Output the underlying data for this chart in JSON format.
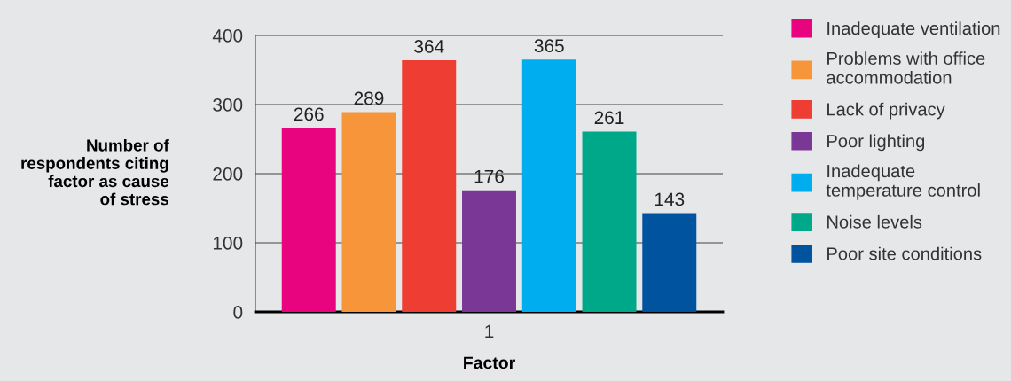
{
  "chart_data": {
    "type": "bar",
    "xlabel": "Factor",
    "ylabel": "Number of\nrespondents citing\nfactor as cause\nof stress",
    "categories": [
      "1"
    ],
    "series": [
      {
        "name": "Inadequate ventilation",
        "color": "#e8037f",
        "values": [
          266
        ]
      },
      {
        "name": "Problems with office\naccommodation",
        "color": "#f7953a",
        "values": [
          289
        ]
      },
      {
        "name": "Lack of privacy",
        "color": "#ee3e33",
        "values": [
          364
        ]
      },
      {
        "name": "Poor lighting",
        "color": "#7b3796",
        "values": [
          176
        ]
      },
      {
        "name": "Inadequate\ntemperature control",
        "color": "#00aeef",
        "values": [
          365
        ]
      },
      {
        "name": "Noise levels",
        "color": "#00a88a",
        "values": [
          261
        ]
      },
      {
        "name": "Poor site conditions",
        "color": "#00539f",
        "values": [
          143
        ]
      }
    ],
    "ylim": [
      0,
      400
    ],
    "yticks": [
      0,
      100,
      200,
      300,
      400
    ],
    "grid": "y",
    "legend": "right",
    "data_labels": true
  }
}
